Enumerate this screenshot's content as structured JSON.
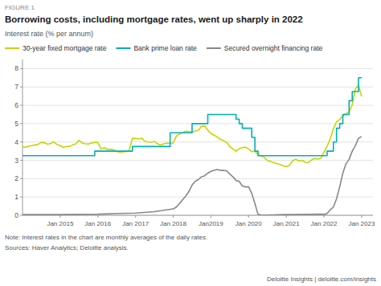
{
  "chart_data": {
    "type": "line",
    "title": "Borrowing costs, including mortgage rates, went up sharply in 2022",
    "ylabel": "Interest rate (% per annum)",
    "annotations": [
      "FIGURE 1",
      "Note: Interest rates in the chart are monthly averages of the daily rates.",
      "Sources: Haver Analytics; Deloitte analysis.",
      "Deloitte Insights | deloitte.com/insights"
    ],
    "xlim": [
      2014.0,
      2023.3
    ],
    "xticks": [
      {
        "value": 2015,
        "label": "Jan 2015"
      },
      {
        "value": 2016,
        "label": "Jan 2016"
      },
      {
        "value": 2017,
        "label": "Jan 2017"
      },
      {
        "value": 2018,
        "label": "Jan 2018"
      },
      {
        "value": 2019,
        "label": "Jan2019"
      },
      {
        "value": 2020,
        "label": "Jan 2020"
      },
      {
        "value": 2021,
        "label": "Jan 2021"
      },
      {
        "value": 2022,
        "label": "Jan 2022"
      },
      {
        "value": 2023,
        "label": "Jan 2023"
      }
    ],
    "ylim": [
      0,
      8.5
    ],
    "yticks": [
      0,
      1,
      2,
      3,
      4,
      5,
      6,
      7,
      8
    ],
    "grid": true,
    "legend": "top",
    "series": [
      {
        "name": "30-year fixed mortgage rate",
        "color": "#c8d400",
        "type": "line",
        "x": [
          2014.0,
          2014.083,
          2014.167,
          2014.25,
          2014.333,
          2014.417,
          2014.5,
          2014.583,
          2014.667,
          2014.75,
          2014.833,
          2014.917,
          2015.0,
          2015.083,
          2015.167,
          2015.25,
          2015.333,
          2015.417,
          2015.5,
          2015.583,
          2015.667,
          2015.75,
          2015.833,
          2015.917,
          2016.0,
          2016.083,
          2016.167,
          2016.25,
          2016.333,
          2016.417,
          2016.5,
          2016.583,
          2016.667,
          2016.75,
          2016.833,
          2016.917,
          2017.0,
          2017.083,
          2017.167,
          2017.25,
          2017.333,
          2017.417,
          2017.5,
          2017.583,
          2017.667,
          2017.75,
          2017.833,
          2017.917,
          2018.0,
          2018.083,
          2018.167,
          2018.25,
          2018.333,
          2018.417,
          2018.5,
          2018.583,
          2018.667,
          2018.75,
          2018.833,
          2018.917,
          2019.0,
          2019.083,
          2019.167,
          2019.25,
          2019.333,
          2019.417,
          2019.5,
          2019.583,
          2019.667,
          2019.75,
          2019.833,
          2019.917,
          2020.0,
          2020.083,
          2020.167,
          2020.25,
          2020.333,
          2020.417,
          2020.5,
          2020.583,
          2020.667,
          2020.75,
          2020.833,
          2020.917,
          2021.0,
          2021.083,
          2021.167,
          2021.25,
          2021.333,
          2021.417,
          2021.5,
          2021.583,
          2021.667,
          2021.75,
          2021.833,
          2021.917,
          2022.0,
          2022.083,
          2022.167,
          2022.25,
          2022.333,
          2022.417,
          2022.5,
          2022.583,
          2022.667,
          2022.75,
          2022.833,
          2022.917,
          2023.0
        ],
        "values": [
          3.73,
          3.71,
          3.77,
          3.8,
          3.84,
          3.87,
          3.98,
          3.95,
          3.88,
          3.92,
          3.99,
          3.86,
          3.8,
          3.7,
          3.76,
          3.75,
          3.84,
          3.9,
          4.09,
          3.94,
          3.9,
          3.89,
          3.94,
          3.97,
          3.97,
          3.62,
          3.69,
          3.59,
          3.61,
          3.57,
          3.48,
          3.44,
          3.46,
          3.47,
          3.54,
          4.2,
          4.19,
          4.17,
          4.2,
          4.03,
          4.0,
          3.99,
          4.03,
          3.9,
          3.83,
          3.9,
          3.94,
          3.92,
          3.95,
          4.32,
          4.44,
          4.5,
          4.59,
          4.57,
          4.54,
          4.6,
          4.63,
          4.86,
          4.87,
          4.64,
          4.46,
          4.37,
          4.27,
          4.14,
          4.07,
          3.99,
          3.75,
          3.62,
          3.49,
          3.64,
          3.69,
          3.72,
          3.62,
          3.47,
          3.5,
          3.31,
          3.23,
          3.16,
          2.98,
          2.94,
          2.87,
          2.83,
          2.77,
          2.71,
          2.65,
          2.73,
          2.97,
          3.06,
          2.96,
          3.0,
          2.89,
          2.87,
          3.01,
          3.1,
          3.07,
          3.11,
          3.45,
          3.76,
          4.17,
          4.72,
          5.1,
          5.23,
          5.41,
          5.55,
          5.66,
          6.02,
          6.9,
          7.08,
          6.48
        ]
      },
      {
        "name": "Bank prime loan rate",
        "color": "#00b0b9",
        "type": "step",
        "x": [
          2014.0,
          2014.917,
          2015.0,
          2015.833,
          2015.917,
          2016.0,
          2016.833,
          2016.917,
          2017.0,
          2017.833,
          2017.917,
          2018.0,
          2018.5,
          2018.917,
          2019.0,
          2019.583,
          2019.667,
          2019.75,
          2019.833,
          2020.0,
          2020.083,
          2020.167,
          2020.25,
          2021.0,
          2021.917,
          2022.0,
          2022.083,
          2022.25,
          2022.333,
          2022.417,
          2022.5,
          2022.667,
          2022.75,
          2022.917,
          2023.0
        ],
        "values": [
          3.25,
          3.25,
          3.25,
          3.25,
          3.5,
          3.5,
          3.5,
          3.75,
          3.75,
          3.75,
          4.5,
          4.5,
          5.0,
          5.5,
          5.5,
          5.5,
          5.25,
          5.0,
          4.75,
          4.75,
          4.25,
          3.5,
          3.25,
          3.25,
          3.25,
          3.25,
          3.5,
          4.0,
          4.75,
          5.0,
          5.5,
          6.25,
          6.75,
          7.5,
          7.5
        ]
      },
      {
        "name": "Secured overnight financing rate",
        "color": "#888888",
        "type": "line",
        "x": [
          2014.0,
          2014.083,
          2014.5,
          2015.0,
          2015.5,
          2016.0,
          2016.5,
          2017.0,
          2017.5,
          2018.0,
          2018.083,
          2018.167,
          2018.25,
          2018.333,
          2018.417,
          2018.5,
          2018.583,
          2018.667,
          2018.75,
          2018.833,
          2018.917,
          2019.0,
          2019.083,
          2019.167,
          2019.25,
          2019.333,
          2019.417,
          2019.5,
          2019.583,
          2019.667,
          2019.75,
          2019.833,
          2019.917,
          2020.0,
          2020.083,
          2020.167,
          2020.25,
          2020.333,
          2020.417,
          2020.5,
          2020.583,
          2020.667,
          2020.75,
          2020.833,
          2020.917,
          2021.0,
          2021.083,
          2021.5,
          2021.917,
          2022.0,
          2022.083,
          2022.167,
          2022.25,
          2022.333,
          2022.417,
          2022.5,
          2022.583,
          2022.667,
          2022.75,
          2022.833,
          2022.917,
          2023.0
        ],
        "values": [
          0.04,
          0.04,
          0.04,
          0.04,
          0.05,
          0.06,
          0.1,
          0.12,
          0.2,
          0.35,
          0.45,
          0.65,
          0.85,
          1.05,
          1.3,
          1.65,
          1.85,
          1.95,
          2.1,
          2.15,
          2.3,
          2.4,
          2.45,
          2.5,
          2.45,
          2.45,
          2.42,
          2.25,
          2.1,
          1.9,
          1.85,
          1.6,
          1.55,
          1.55,
          1.2,
          0.65,
          0.05,
          0.02,
          0.01,
          0.01,
          0.02,
          0.02,
          0.03,
          0.03,
          0.04,
          0.04,
          0.04,
          0.05,
          0.06,
          0.05,
          0.1,
          0.3,
          0.45,
          0.9,
          1.55,
          2.3,
          2.8,
          3.05,
          3.5,
          3.8,
          4.2,
          4.3
        ]
      }
    ]
  }
}
